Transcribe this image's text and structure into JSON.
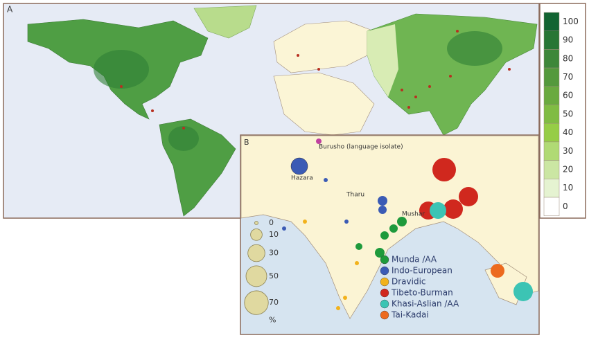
{
  "panel_a": {
    "label": "A",
    "scale": {
      "ticks": [
        100,
        90,
        80,
        70,
        60,
        50,
        40,
        30,
        20,
        10,
        0
      ]
    }
  },
  "panel_b": {
    "label": "B",
    "annotations": [
      "Burusho (language isolate)",
      "Hazara",
      "Tharu",
      "Mushar"
    ],
    "size_legend": {
      "values": [
        0,
        10,
        30,
        50,
        70
      ],
      "unit": "%"
    },
    "groups": [
      {
        "name": "Munda /AA",
        "color": "#1e9a3c"
      },
      {
        "name": "Indo-European",
        "color": "#3b5bb5"
      },
      {
        "name": "Dravidic",
        "color": "#f2b21c"
      },
      {
        "name": "Tibeto-Burman",
        "color": "#d0281e"
      },
      {
        "name": "Khasi-Aslian /AA",
        "color": "#3cc4b4"
      },
      {
        "name": "Tai-Kadai",
        "color": "#ec6a1e"
      }
    ]
  }
}
